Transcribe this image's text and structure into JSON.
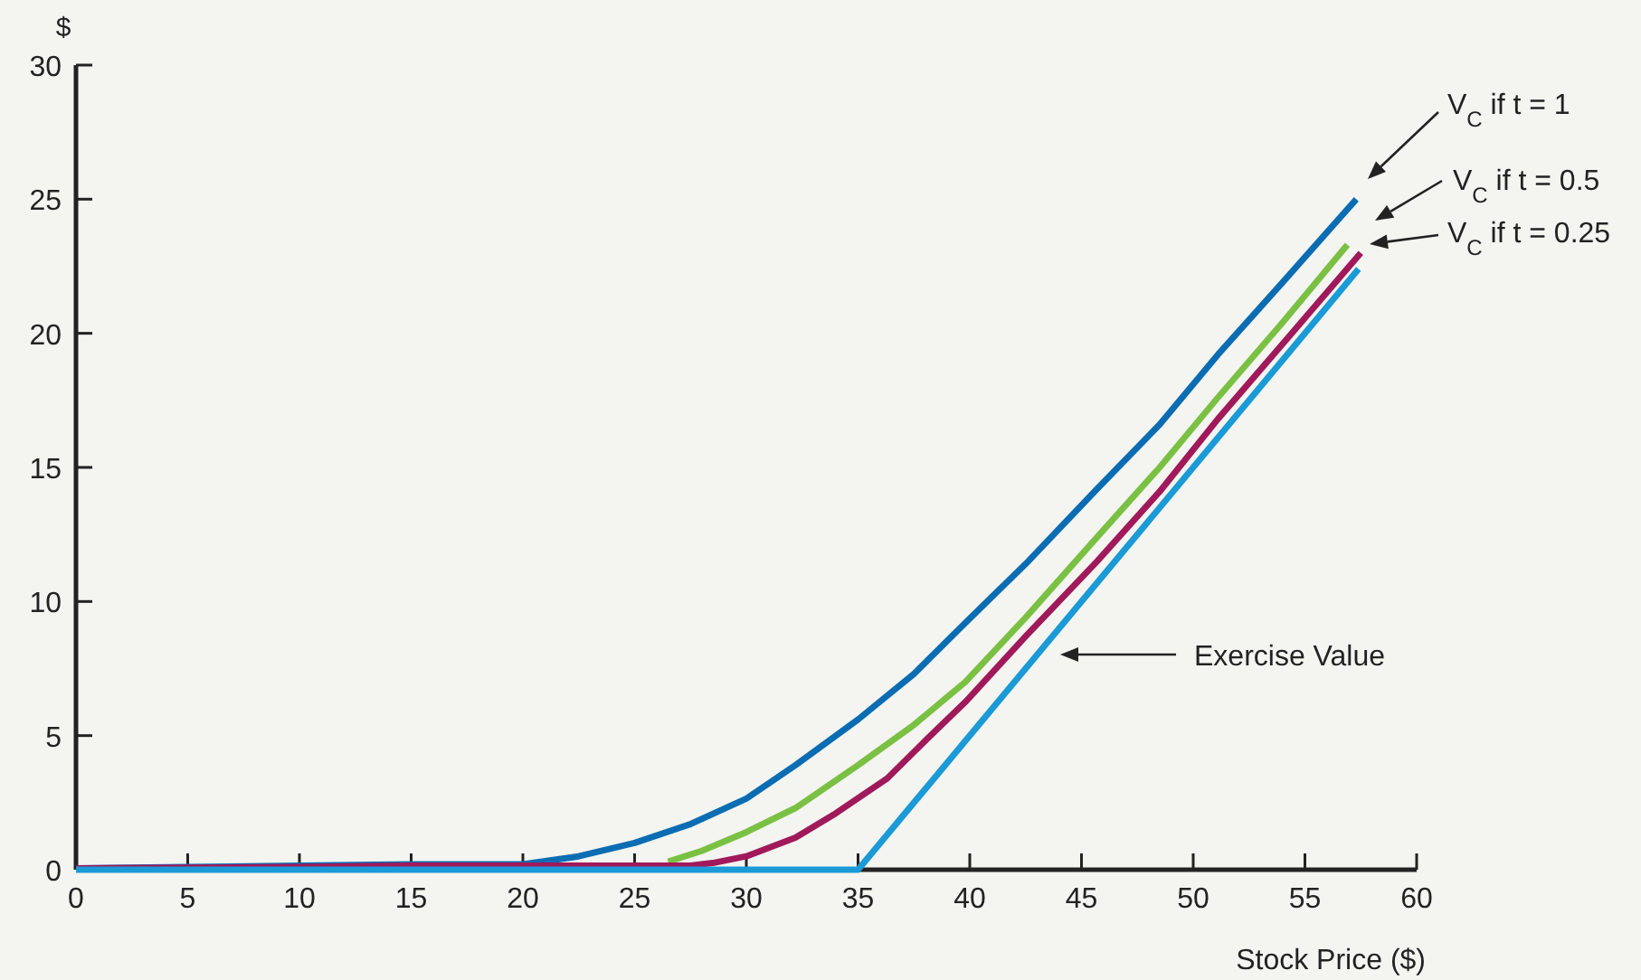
{
  "chart_data": {
    "type": "line",
    "xlabel": "Stock Price ($)",
    "ylabel": "$",
    "xlim": [
      0,
      60
    ],
    "ylim": [
      0,
      30
    ],
    "xticks": [
      0,
      5,
      10,
      15,
      20,
      25,
      30,
      35,
      40,
      45,
      50,
      55,
      60
    ],
    "yticks": [
      0,
      5,
      10,
      15,
      20,
      25,
      30
    ],
    "grid": false,
    "marker": "none",
    "line_style": "solid",
    "series": [
      {
        "color": "#0a6db3",
        "x": [
          0,
          5,
          10,
          15,
          20,
          22.5,
          25,
          27.5,
          30,
          32.2,
          35,
          37.5,
          39.8,
          42.5,
          45.7,
          48.5,
          51.1,
          54,
          57.3
        ],
        "values": [
          0.05,
          0.1,
          0.15,
          0.2,
          0.2,
          0.5,
          1.0,
          1.7,
          2.65,
          3.9,
          5.6,
          7.3,
          9.2,
          11.4,
          14.2,
          16.6,
          19.2,
          21.9,
          25.0
        ]
      },
      {
        "color": "#7ac143",
        "x": [
          26.5,
          28,
          30,
          32.2,
          35,
          37.5,
          39.8,
          42.5,
          45.7,
          48.5,
          51.1,
          54,
          56.9
        ],
        "values": [
          0.3,
          0.7,
          1.4,
          2.3,
          3.9,
          5.4,
          7.0,
          9.4,
          12.4,
          15.0,
          17.6,
          20.4,
          23.3
        ]
      },
      {
        "color": "#a0195a",
        "x": [
          0,
          10,
          15,
          20,
          25,
          27.5,
          28.5,
          30,
          32.2,
          34,
          36.3,
          38,
          39.8,
          42.5,
          45.7,
          48.5,
          51.1,
          54,
          57.5
        ],
        "values": [
          0.05,
          0.1,
          0.15,
          0.15,
          0.15,
          0.15,
          0.25,
          0.5,
          1.2,
          2.1,
          3.4,
          4.8,
          6.25,
          8.7,
          11.5,
          14.1,
          16.8,
          19.6,
          23.0
        ]
      },
      {
        "color": "#1a9ad6",
        "x": [
          0,
          35,
          57.4
        ],
        "values": [
          0,
          0,
          22.4
        ]
      }
    ],
    "annotations": [
      "V$_{C}$ if t = 1",
      "V$_{C}$ if t = 0.5",
      "V$_{C}$ if t = 0.25",
      "Exercise Value"
    ]
  }
}
